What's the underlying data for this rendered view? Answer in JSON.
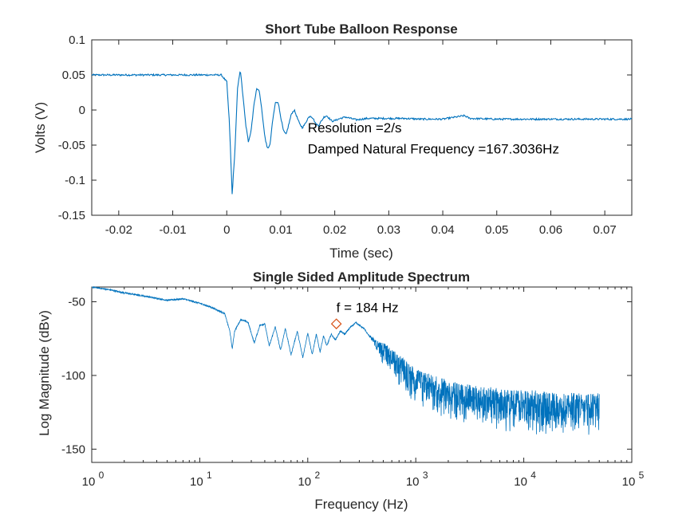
{
  "chart_data": [
    {
      "type": "line",
      "title": "Short Tube Balloon Response",
      "xlabel": "Time (sec)",
      "ylabel": "Volts (V)",
      "xlim": [
        -0.025,
        0.075
      ],
      "ylim": [
        -0.15,
        0.1
      ],
      "xticks": [
        -0.02,
        -0.01,
        0,
        0.01,
        0.02,
        0.03,
        0.04,
        0.05,
        0.06,
        0.07
      ],
      "xtick_labels": [
        "-0.02",
        "-0.01",
        "0",
        "0.01",
        "0.02",
        "0.03",
        "0.04",
        "0.05",
        "0.06",
        "0.07"
      ],
      "yticks": [
        -0.15,
        -0.1,
        -0.05,
        0,
        0.05,
        0.1
      ],
      "ytick_labels": [
        "-0.15",
        "-0.1",
        "-0.05",
        "0",
        "0.05",
        "0.1"
      ],
      "grid": false,
      "series": [
        {
          "color": "#0072BD",
          "x": [
            -0.025,
            -0.02,
            -0.015,
            -0.01,
            -0.005,
            -0.001,
            0.0,
            0.0005,
            0.001,
            0.0015,
            0.002,
            0.0025,
            0.003,
            0.0035,
            0.004,
            0.0045,
            0.005,
            0.0055,
            0.006,
            0.0065,
            0.007,
            0.0075,
            0.008,
            0.0085,
            0.009,
            0.0095,
            0.01,
            0.0105,
            0.011,
            0.0115,
            0.012,
            0.0125,
            0.013,
            0.0135,
            0.014,
            0.0145,
            0.015,
            0.0155,
            0.016,
            0.0165,
            0.017,
            0.0175,
            0.018,
            0.0185,
            0.019,
            0.0195,
            0.02,
            0.021,
            0.022,
            0.023,
            0.024,
            0.025,
            0.026,
            0.027,
            0.028,
            0.03,
            0.033,
            0.036,
            0.04,
            0.044,
            0.045,
            0.05,
            0.055,
            0.06,
            0.065,
            0.07,
            0.075
          ],
          "y": [
            0.05,
            0.05,
            0.05,
            0.05,
            0.05,
            0.05,
            0.04,
            -0.02,
            -0.12,
            -0.06,
            0.03,
            0.058,
            0.02,
            -0.02,
            -0.045,
            -0.03,
            0.005,
            0.03,
            0.028,
            0.0,
            -0.035,
            -0.055,
            -0.05,
            -0.015,
            0.01,
            0.012,
            -0.01,
            -0.03,
            -0.035,
            -0.02,
            -0.005,
            0.0,
            -0.01,
            -0.02,
            -0.025,
            -0.02,
            -0.012,
            -0.008,
            -0.012,
            -0.02,
            -0.022,
            -0.016,
            -0.01,
            -0.008,
            -0.012,
            -0.016,
            -0.015,
            -0.012,
            -0.01,
            -0.012,
            -0.014,
            -0.013,
            -0.012,
            -0.012,
            -0.012,
            -0.012,
            -0.012,
            -0.013,
            -0.013,
            -0.008,
            -0.012,
            -0.013,
            -0.013,
            -0.013,
            -0.013,
            -0.013,
            -0.013
          ]
        }
      ],
      "annotations": [
        {
          "text": "Resolution =2/s",
          "x": 0.015,
          "y": -0.032
        },
        {
          "text": "Damped Natural Frequency =167.3036Hz",
          "x": 0.015,
          "y": -0.062
        }
      ]
    },
    {
      "type": "line",
      "title": "Single Sided Amplitude Spectrum",
      "xlabel": "Frequency (Hz)",
      "ylabel": "Log Magnitude (dBv)",
      "xscale": "log",
      "xlim": [
        1,
        100000
      ],
      "ylim": [
        -159,
        -40
      ],
      "xticks": [
        1,
        10,
        100,
        1000,
        10000,
        100000
      ],
      "xtick_labels": [
        {
          "base": "10",
          "exp": "0"
        },
        {
          "base": "10",
          "exp": "1"
        },
        {
          "base": "10",
          "exp": "2"
        },
        {
          "base": "10",
          "exp": "3"
        },
        {
          "base": "10",
          "exp": "4"
        },
        {
          "base": "10",
          "exp": "5"
        }
      ],
      "yticks": [
        -150,
        -100,
        -50
      ],
      "ytick_labels": [
        "-150",
        "-100",
        "-50"
      ],
      "grid": false,
      "series": [
        {
          "color": "#0072BD",
          "x": [
            1,
            1.5,
            2,
            3,
            5,
            7,
            10,
            13,
            17,
            19,
            20,
            21,
            24,
            28,
            32,
            36,
            40,
            44,
            50,
            56,
            62,
            70,
            80,
            90,
            100,
            110,
            120,
            130,
            140,
            150,
            165,
            180,
            200,
            220,
            250,
            280,
            300,
            330,
            360,
            400,
            450,
            500,
            550,
            600,
            650,
            700,
            800,
            900,
            1000,
            1200,
            1500,
            2000,
            3000,
            5000,
            8000,
            12000,
            20000,
            30000,
            50000
          ],
          "y": [
            -40,
            -42,
            -44,
            -46,
            -49,
            -48,
            -51,
            -54,
            -58,
            -70,
            -82,
            -70,
            -62,
            -64,
            -78,
            -66,
            -65,
            -80,
            -67,
            -83,
            -68,
            -86,
            -70,
            -88,
            -71,
            -86,
            -72,
            -84,
            -73,
            -80,
            -72,
            -76,
            -70,
            -72,
            -67,
            -64,
            -66,
            -68,
            -72,
            -76,
            -80,
            -83,
            -85,
            -88,
            -90,
            -93,
            -97,
            -101,
            -103,
            -106,
            -109,
            -112,
            -115,
            -117,
            -119,
            -120,
            -121,
            -122,
            -122
          ],
          "noise_band_below": [
            0,
            0,
            0,
            0,
            0,
            0,
            0,
            0,
            0,
            0,
            0,
            0,
            0,
            0,
            0,
            0,
            0,
            0,
            0,
            0,
            0,
            0,
            0,
            0,
            0,
            0,
            0,
            0,
            0,
            0,
            0,
            0,
            0,
            0,
            0,
            0,
            0,
            0,
            0,
            3,
            6,
            10,
            12,
            13,
            14,
            15,
            16,
            17,
            18,
            18,
            19,
            19,
            20,
            20,
            21,
            21,
            21,
            21,
            20
          ],
          "noise_band_above": [
            0,
            0,
            0,
            0,
            0,
            0,
            0,
            0,
            0,
            0,
            0,
            0,
            0,
            0,
            0,
            0,
            0,
            0,
            0,
            0,
            0,
            0,
            0,
            0,
            0,
            0,
            0,
            0,
            0,
            0,
            0,
            0,
            0,
            0,
            0,
            0,
            0,
            0,
            0,
            2,
            3,
            5,
            6,
            6,
            7,
            7,
            8,
            8,
            8,
            8,
            9,
            9,
            9,
            9,
            9,
            10,
            10,
            10,
            10
          ]
        }
      ],
      "marker": {
        "x": 184,
        "y": -65,
        "shape": "diamond",
        "color": "#D95319"
      },
      "annotations": [
        {
          "text": "f = 184 Hz",
          "x": 184,
          "y": -57
        }
      ]
    }
  ]
}
